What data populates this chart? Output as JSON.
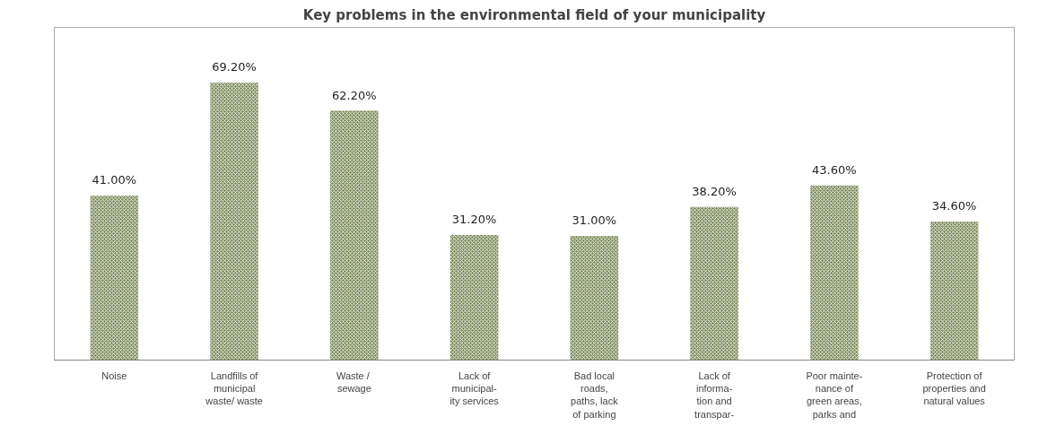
{
  "chart_data": {
    "type": "bar",
    "title": "Key problems in the environmental field of your municipality",
    "categories": [
      "Noise",
      "Landfills of\nmunicipal\nwaste/ waste",
      "Waste  /\nsewage",
      "Lack of\nmunicipal-\nity services",
      "Bad local\nroads,\npaths, lack\nof parking",
      "Lack of\ninforma-\ntion and\ntranspar-",
      "Poor mainte-\nnance of\ngreen areas,\nparks and",
      "Protection of\nproperties and\nnatural values"
    ],
    "values": [
      41.0,
      69.2,
      62.2,
      31.2,
      31.0,
      38.2,
      43.6,
      34.6
    ],
    "value_labels": [
      "41.00%",
      "69.20%",
      "62.20%",
      "31.20%",
      "31.00%",
      "38.20%",
      "43.60%",
      "34.60%"
    ],
    "color": "#7d8c5c",
    "grid": false
  }
}
